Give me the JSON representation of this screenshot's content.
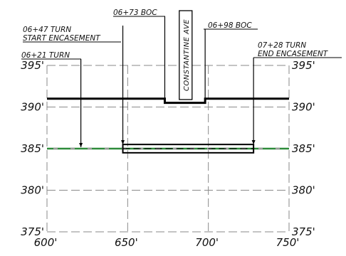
{
  "profile": {
    "y_ticks": [
      "395'",
      "390'",
      "385'",
      "380'",
      "375'"
    ],
    "x_ticks": [
      "600'",
      "650'",
      "700'",
      "750'"
    ],
    "x_range": [
      600,
      750
    ],
    "y_range": [
      375,
      395
    ],
    "street_name": "CONSTANTINE AVE",
    "annotations": [
      {
        "id": "t621",
        "lines": [
          "06+21 TURN"
        ],
        "station": 621
      },
      {
        "id": "t647",
        "lines": [
          "06+47 TURN",
          "START ENCASEMENT"
        ],
        "station": 647
      },
      {
        "id": "boc673",
        "lines": [
          "06+73 BOC"
        ],
        "station": 673
      },
      {
        "id": "boc698",
        "lines": [
          "06+98 BOC"
        ],
        "station": 698
      },
      {
        "id": "t728",
        "lines": [
          "07+28 TURN",
          "END ENCASEMENT"
        ],
        "station": 728
      }
    ],
    "ground_profile": [
      [
        600,
        391
      ],
      [
        673,
        391
      ],
      [
        673,
        390.5
      ],
      [
        698,
        390.5
      ],
      [
        698,
        391
      ],
      [
        750,
        391
      ]
    ],
    "pipe_elevation": 385,
    "encasement": {
      "from": 647,
      "to": 728,
      "top": 385.5,
      "bottom": 384.5
    },
    "colors": {
      "grid": "#8a8a8a",
      "line": "#000000",
      "pipe": "#2e8b3a",
      "pipe_dash": "#9a9a9a"
    }
  }
}
